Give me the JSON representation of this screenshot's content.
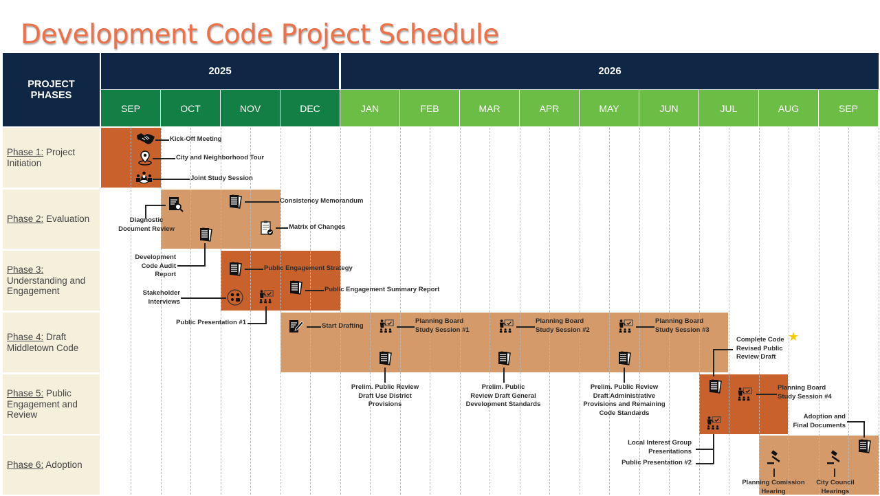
{
  "title": "Development Code Project Schedule",
  "header": {
    "phases_label_line1": "PROJECT",
    "phases_label_line2": "PHASES",
    "years": [
      "2025",
      "2026"
    ]
  },
  "months": [
    "SEP",
    "OCT",
    "NOV",
    "DEC",
    "JAN",
    "FEB",
    "MAR",
    "APR",
    "MAY",
    "JUN",
    "JUL",
    "AUG",
    "SEP"
  ],
  "colors": {
    "navy": "#0f2744",
    "month_2025": "#128044",
    "month_2026": "#6cbd45",
    "phase_dark": "#c8612c",
    "phase_light": "#d49a6a",
    "phase_label_bg": "#f5f0dc",
    "title": "#ec7048",
    "milestone_star": "#f7c800"
  },
  "phases": [
    {
      "name": "Phase 1:",
      "rest": " Project Initiation",
      "start": "2025-09-01",
      "end": "2025-10-01",
      "style": "dark"
    },
    {
      "name": "Phase 2:",
      "rest": " Evaluation",
      "start": "2025-10-01",
      "end": "2025-12-01",
      "style": "light"
    },
    {
      "name": "Phase 3:",
      "rest": " Understanding and Engagement",
      "start": "2025-11-01",
      "end": "2026-01-01",
      "style": "dark"
    },
    {
      "name": "Phase 4:",
      "rest": " Draft Middletown Code",
      "start": "2025-12-01",
      "end": "2026-07-16",
      "style": "light"
    },
    {
      "name": "Phase 5:",
      "rest": " Public Engagement and Review",
      "start": "2026-07-01",
      "end": "2026-08-16",
      "style": "dark"
    },
    {
      "name": "Phase 6:",
      "rest": " Adoption",
      "start": "2026-08-01",
      "end": "2026-10-01",
      "style": "light"
    }
  ],
  "events": {
    "kickoff": {
      "label": "Kick-Off Meeting",
      "icon": "handshake"
    },
    "tour": {
      "label": "City and Neighborhood Tour",
      "icon": "location-pin"
    },
    "joint": {
      "label": "Joint Study Session",
      "icon": "meeting"
    },
    "diagnostic": {
      "label1": "Diagnostic",
      "label2": "Document Review",
      "icon": "document-search"
    },
    "consistency": {
      "label": "Consistency Memorandum",
      "icon": "document-stack"
    },
    "audit": {
      "label1": "Development",
      "label2": "Code Audit",
      "label3": "Report",
      "icon": "document-stack"
    },
    "matrix": {
      "label": "Matrix of Changes",
      "icon": "clipboard-check"
    },
    "strategy": {
      "label": "Public Engagement Strategy",
      "icon": "document-stack"
    },
    "summary": {
      "label": "Public Engagement Summary Report",
      "icon": "document-stack"
    },
    "stakeholder": {
      "label1": "Stakeholder",
      "label2": "Interviews",
      "icon": "interview"
    },
    "pp1": {
      "label": "Public Presentation #1",
      "icon": "presenter"
    },
    "drafting": {
      "label": "Start Drafting",
      "icon": "edit-document"
    },
    "pb1": {
      "label1": "Planning Board",
      "label2": "Study Session #1",
      "icon": "presenter"
    },
    "pb2": {
      "label1": "Planning Board",
      "label2": "Study Session #2",
      "icon": "presenter"
    },
    "pb3": {
      "label1": "Planning Board",
      "label2": "Study Session #3",
      "icon": "presenter"
    },
    "d1": {
      "label1": "Prelim. Public Review",
      "label2": "Draft Use District",
      "label3": "Provisions",
      "icon": "document-stack"
    },
    "d2": {
      "label1": "Prelim. Public",
      "label2": "Review Draft General",
      "label3": "Development Standards",
      "icon": "document-stack"
    },
    "d3": {
      "label1": "Prelim. Public Review",
      "label2": "Draft Administrative",
      "label3": "Provisions and Remaining",
      "label4": "Code Standards",
      "icon": "document-stack"
    },
    "complete": {
      "label1": "Complete Code",
      "label2": "Revised Public",
      "label3": "Review Draft",
      "icon": "document-stack",
      "milestone": "star"
    },
    "pb4": {
      "label1": "Planning Board",
      "label2": "Study Session #4",
      "icon": "presenter"
    },
    "lig": {
      "label1": "Local Interest Group",
      "label2": "Presentations",
      "icon": "presenter"
    },
    "pp2": {
      "label": "Public Presentation #2"
    },
    "adoption": {
      "label1": "Adoption and",
      "label2": "Final Documents",
      "icon": "document-stack"
    },
    "pc": {
      "label1": "Planning Comission",
      "label2": "Hearing",
      "icon": "gavel"
    },
    "cc": {
      "label1": "City Council",
      "label2": "Hearings",
      "icon": "gavel"
    }
  }
}
